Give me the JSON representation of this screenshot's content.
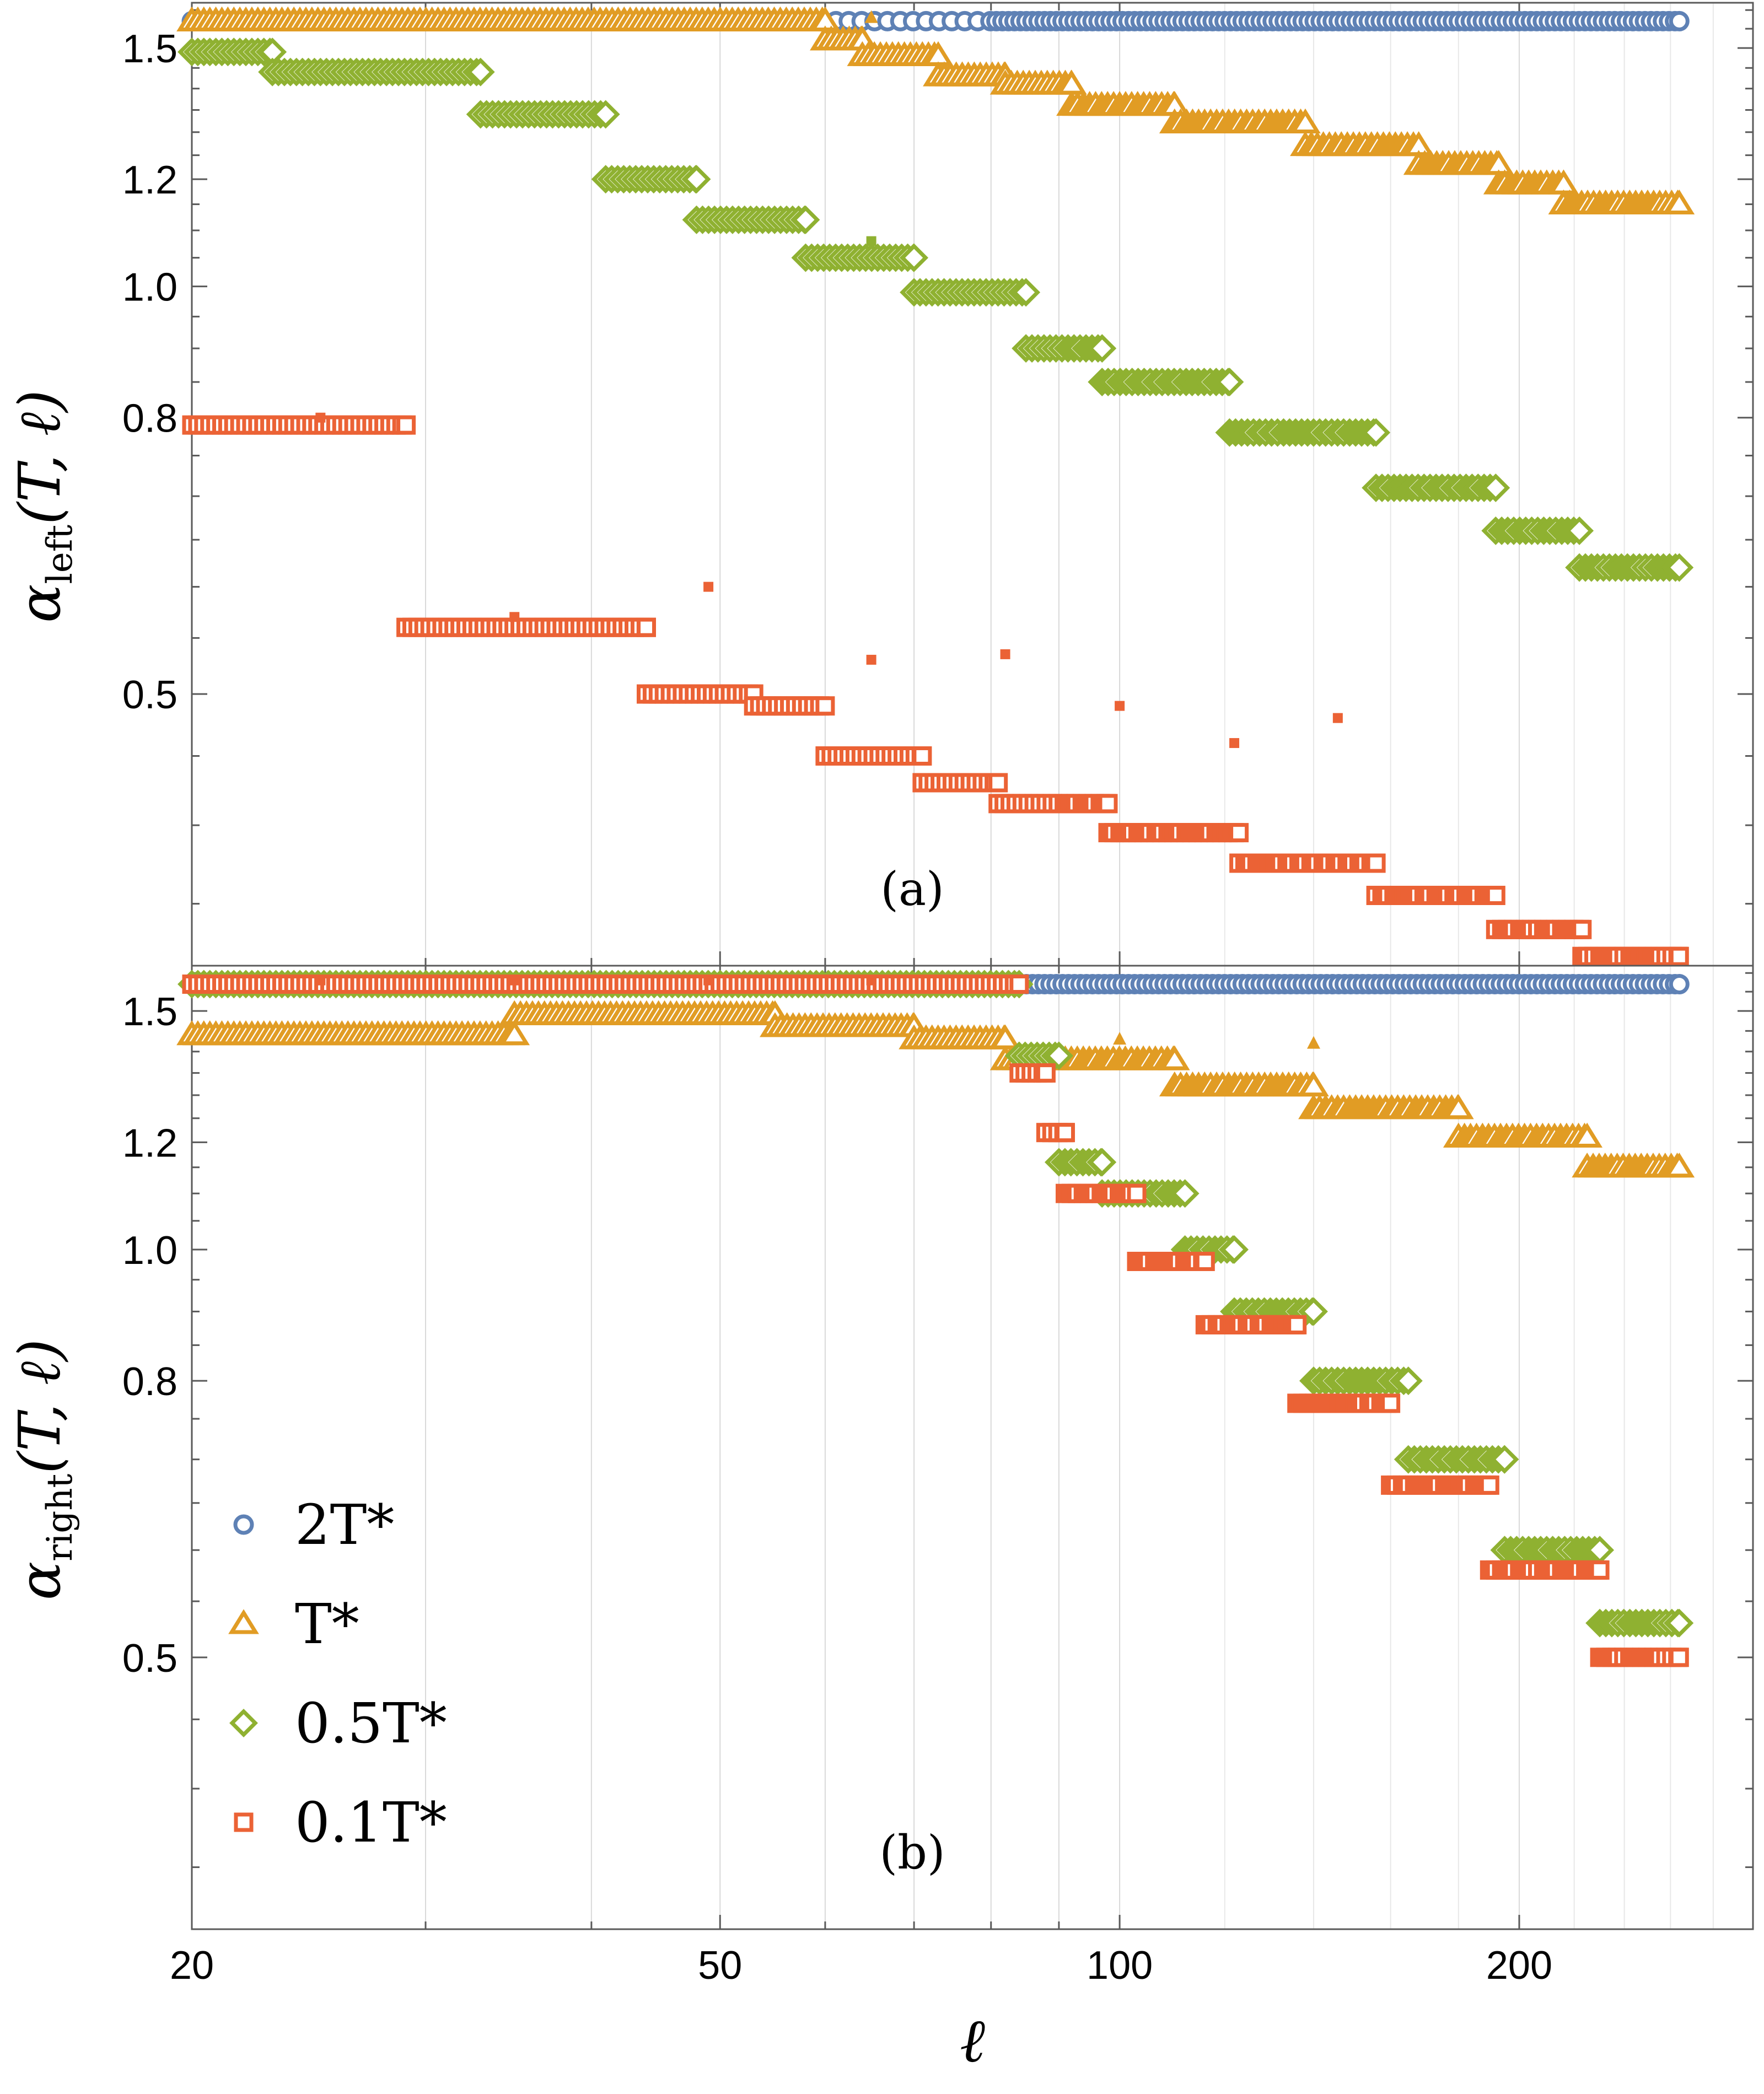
{
  "chart_data": [
    {
      "panel": "(a)",
      "type": "scatter",
      "xscale": "log",
      "yscale": "log",
      "xlim": [
        20,
        300
      ],
      "ylim": [
        0.315,
        1.62
      ],
      "ylabel_base": "α",
      "ylabel_sub": "left",
      "ylabel_args": "(T, ℓ)",
      "yticks": [
        0.5,
        0.8,
        1.0,
        1.2,
        1.5
      ],
      "ytick_labels": [
        "0.5",
        "0.8",
        "1.0",
        "1.2",
        "1.5"
      ],
      "series": [
        {
          "name": "2T*",
          "marker": "circle",
          "color": "#5e81b5",
          "steps": [
            [
              20.0,
              264.0,
              1.57
            ]
          ]
        },
        {
          "name": "T*",
          "marker": "triangle",
          "color": "#e19c24",
          "steps": [
            [
              20.0,
              60.0,
              1.57
            ],
            [
              60.0,
              64.0,
              1.52
            ],
            [
              64.0,
              73.0,
              1.48
            ],
            [
              73.0,
              82.0,
              1.43
            ],
            [
              82.0,
              92.0,
              1.41
            ],
            [
              92.0,
              110.0,
              1.36
            ],
            [
              110.0,
              138.0,
              1.32
            ],
            [
              138.0,
              168.0,
              1.27
            ],
            [
              168.0,
              193.0,
              1.23
            ],
            [
              193.0,
              216.0,
              1.19
            ],
            [
              216.0,
              264.0,
              1.15
            ]
          ],
          "outliers": [
            [
              65.0,
              1.58
            ]
          ]
        },
        {
          "name": "0.5T*",
          "marker": "diamond",
          "color": "#8fb131",
          "steps": [
            [
              20.0,
              23.0,
              1.49
            ],
            [
              23.0,
              33.0,
              1.44
            ],
            [
              33.0,
              41.0,
              1.34
            ],
            [
              41.0,
              48.0,
              1.2
            ],
            [
              48.0,
              58.0,
              1.12
            ],
            [
              58.0,
              70.0,
              1.05
            ],
            [
              70.0,
              85.0,
              0.99
            ],
            [
              85.0,
              97.0,
              0.9
            ],
            [
              97.0,
              121.0,
              0.85
            ],
            [
              121.0,
              156.0,
              0.78
            ],
            [
              156.0,
              192.0,
              0.71
            ],
            [
              192.0,
              222.0,
              0.66
            ],
            [
              222.0,
              264.0,
              0.62
            ]
          ],
          "outliers": [
            [
              65.0,
              1.08
            ]
          ]
        },
        {
          "name": "0.1T*",
          "marker": "square",
          "color": "#eb6235",
          "steps": [
            [
              20.0,
              29.0,
              0.79
            ],
            [
              29.0,
              44.0,
              0.56
            ],
            [
              44.0,
              53.0,
              0.5
            ],
            [
              53.0,
              60.0,
              0.49
            ],
            [
              60.0,
              71.0,
              0.45
            ],
            [
              71.0,
              81.0,
              0.43
            ],
            [
              81.0,
              98.0,
              0.415
            ],
            [
              98.0,
              123.0,
              0.395
            ],
            [
              123.0,
              156.0,
              0.375
            ],
            [
              156.0,
              192.0,
              0.355
            ],
            [
              192.0,
              223.0,
              0.335
            ],
            [
              223.0,
              264.0,
              0.32
            ]
          ],
          "outliers": [
            [
              25.0,
              0.8
            ],
            [
              35.0,
              0.57
            ],
            [
              49.0,
              0.6
            ],
            [
              65.0,
              0.53
            ],
            [
              82.0,
              0.535
            ],
            [
              100.0,
              0.49
            ],
            [
              122.0,
              0.46
            ],
            [
              146.0,
              0.48
            ]
          ]
        }
      ]
    },
    {
      "panel": "(b)",
      "type": "scatter",
      "xscale": "log",
      "yscale": "log",
      "xlim": [
        20,
        300
      ],
      "ylim": [
        0.315,
        1.62
      ],
      "xlabel": "ℓ",
      "ylabel_base": "α",
      "ylabel_sub": "right",
      "ylabel_args": "(T, ℓ)",
      "yticks": [
        0.5,
        0.8,
        1.0,
        1.2,
        1.5
      ],
      "ytick_labels": [
        "0.5",
        "0.8",
        "1.0",
        "1.2",
        "1.5"
      ],
      "xticks": [
        20,
        50,
        100,
        200
      ],
      "xtick_labels": [
        "20",
        "50",
        "100",
        "200"
      ],
      "series": [
        {
          "name": "2T*",
          "marker": "circle",
          "color": "#5e81b5",
          "steps": [
            [
              20.0,
              264.0,
              1.57
            ]
          ]
        },
        {
          "name": "T*",
          "marker": "triangle",
          "color": "#e19c24",
          "steps": [
            [
              20.0,
              35.0,
              1.44
            ],
            [
              35.0,
              55.0,
              1.49
            ],
            [
              55.0,
              70.0,
              1.46
            ],
            [
              70.0,
              82.0,
              1.43
            ],
            [
              82.0,
              110.0,
              1.38
            ],
            [
              110.0,
              140.0,
              1.32
            ],
            [
              140.0,
              180.0,
              1.27
            ],
            [
              180.0,
              225.0,
              1.21
            ],
            [
              225.0,
              264.0,
              1.15
            ]
          ],
          "outliers": [
            [
              100.0,
              1.43
            ],
            [
              140.0,
              1.42
            ]
          ]
        },
        {
          "name": "0.5T*",
          "marker": "diamond",
          "color": "#8fb131",
          "steps": [
            [
              20.0,
              84.0,
              1.57
            ],
            [
              84.0,
              90.0,
              1.39
            ],
            [
              90.0,
              97.0,
              1.16
            ],
            [
              97.0,
              112.0,
              1.1
            ],
            [
              112.0,
              122.0,
              1.0
            ],
            [
              122.0,
              140.0,
              0.9
            ],
            [
              140.0,
              165.0,
              0.8
            ],
            [
              165.0,
              195.0,
              0.7
            ],
            [
              195.0,
              230.0,
              0.6
            ],
            [
              230.0,
              264.0,
              0.53
            ]
          ]
        },
        {
          "name": "0.1T*",
          "marker": "square",
          "color": "#eb6235",
          "steps": [
            [
              20.0,
              84.0,
              1.57
            ],
            [
              84.0,
              88.0,
              1.35
            ],
            [
              88.0,
              91.0,
              1.22
            ],
            [
              91.0,
              103.0,
              1.1
            ],
            [
              103.0,
              116.0,
              0.98
            ],
            [
              116.0,
              136.0,
              0.88
            ],
            [
              136.0,
              160.0,
              0.77
            ],
            [
              160.0,
              190.0,
              0.67
            ],
            [
              190.0,
              230.0,
              0.58
            ],
            [
              230.0,
              264.0,
              0.5
            ]
          ],
          "outliers": [
            [
              25.0,
              1.58
            ],
            [
              35.0,
              1.58
            ],
            [
              49.0,
              1.58
            ],
            [
              65.0,
              1.58
            ]
          ]
        }
      ],
      "annotation": "(b)"
    }
  ],
  "legend": {
    "placement": "bottom-left of panel (b)",
    "entries": [
      {
        "label": "2T*",
        "marker": "circle",
        "color": "#5e81b5"
      },
      {
        "label": "T*",
        "marker": "triangle",
        "color": "#e19c24"
      },
      {
        "label": "0.5T*",
        "marker": "diamond",
        "color": "#8fb131"
      },
      {
        "label": "0.1T*",
        "marker": "square",
        "color": "#eb6235"
      }
    ]
  }
}
